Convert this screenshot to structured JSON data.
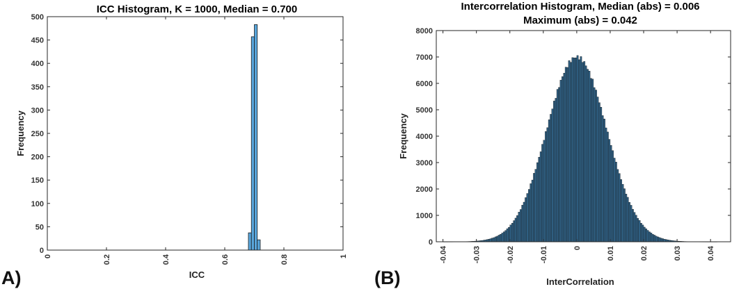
{
  "panels": [
    {
      "label": "A)"
    },
    {
      "label": "(B)"
    }
  ],
  "chart_data": [
    {
      "type": "bar",
      "title": "ICC Histogram, K = 1000, Median = 0.700",
      "xlabel": "ICC",
      "ylabel": "Frequency",
      "xlim": [
        0,
        1
      ],
      "ylim": [
        0,
        500
      ],
      "xticks": [
        "0",
        "0.2",
        "0.4",
        "0.6",
        "0.8",
        "1"
      ],
      "yticks": [
        "0",
        "50",
        "100",
        "150",
        "200",
        "250",
        "300",
        "350",
        "400",
        "450",
        "500"
      ],
      "bin_width": 0.01,
      "bins": [
        {
          "x": 0.685,
          "count": 37
        },
        {
          "x": 0.695,
          "count": 457
        },
        {
          "x": 0.705,
          "count": 483
        },
        {
          "x": 0.715,
          "count": 22
        }
      ],
      "colors": {
        "fill": "#5aa6dc",
        "edge": "#1a1a1a"
      },
      "grid": false
    },
    {
      "type": "bar",
      "title": "Intercorrelation Histogram, Median (abs) = 0.006",
      "subtitle": "Maximum (abs) = 0.042",
      "xlabel": "InterCorrelation",
      "ylabel": "Frequency",
      "xlim": [
        -0.042,
        0.046
      ],
      "ylim": [
        0,
        8000
      ],
      "xticks": [
        "-0.04",
        "-0.03",
        "-0.02",
        "-0.01",
        "0",
        "0.01",
        "0.02",
        "0.03",
        "0.04"
      ],
      "yticks": [
        "0",
        "1000",
        "2000",
        "3000",
        "4000",
        "5000",
        "6000",
        "7000",
        "8000"
      ],
      "distribution": {
        "shape": "normal",
        "mean": 0.0,
        "sd": 0.009,
        "peak": 7000
      },
      "bin_width": 0.0005,
      "range": [
        -0.04,
        0.042
      ],
      "colors": {
        "fill": "#2f5f82",
        "edge": "#111111"
      },
      "grid": false
    }
  ]
}
